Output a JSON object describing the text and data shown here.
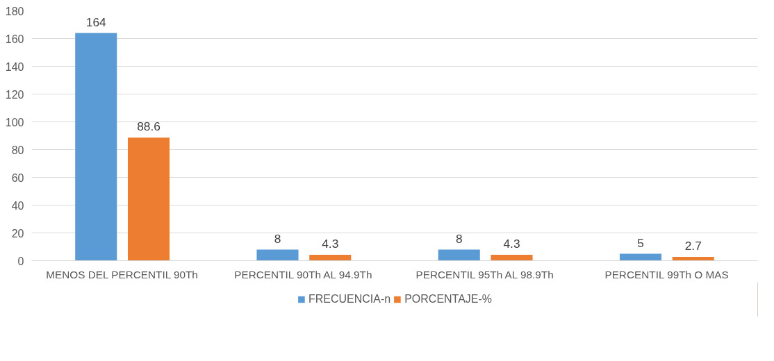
{
  "chart_data": {
    "type": "bar",
    "categories": [
      "MENOS DEL PERCENTIL 90Th",
      "PERCENTIL 90Th AL 94.9Th",
      "PERCENTIL 95Th AL 98.9Th",
      "PERCENTIL 99Th O MAS"
    ],
    "series": [
      {
        "name": "FRECUENCIA-n",
        "color": "#5b9bd5",
        "values": [
          164,
          8,
          8,
          5
        ]
      },
      {
        "name": "PORCENTAJE-%",
        "color": "#ed7d31",
        "values": [
          88.6,
          4.3,
          4.3,
          2.7
        ]
      }
    ],
    "ylim": [
      0,
      180
    ],
    "yticks": [
      0,
      20,
      40,
      60,
      80,
      100,
      120,
      140,
      160,
      180
    ],
    "grid": "y",
    "legend": "bottom",
    "data_labels": true
  }
}
